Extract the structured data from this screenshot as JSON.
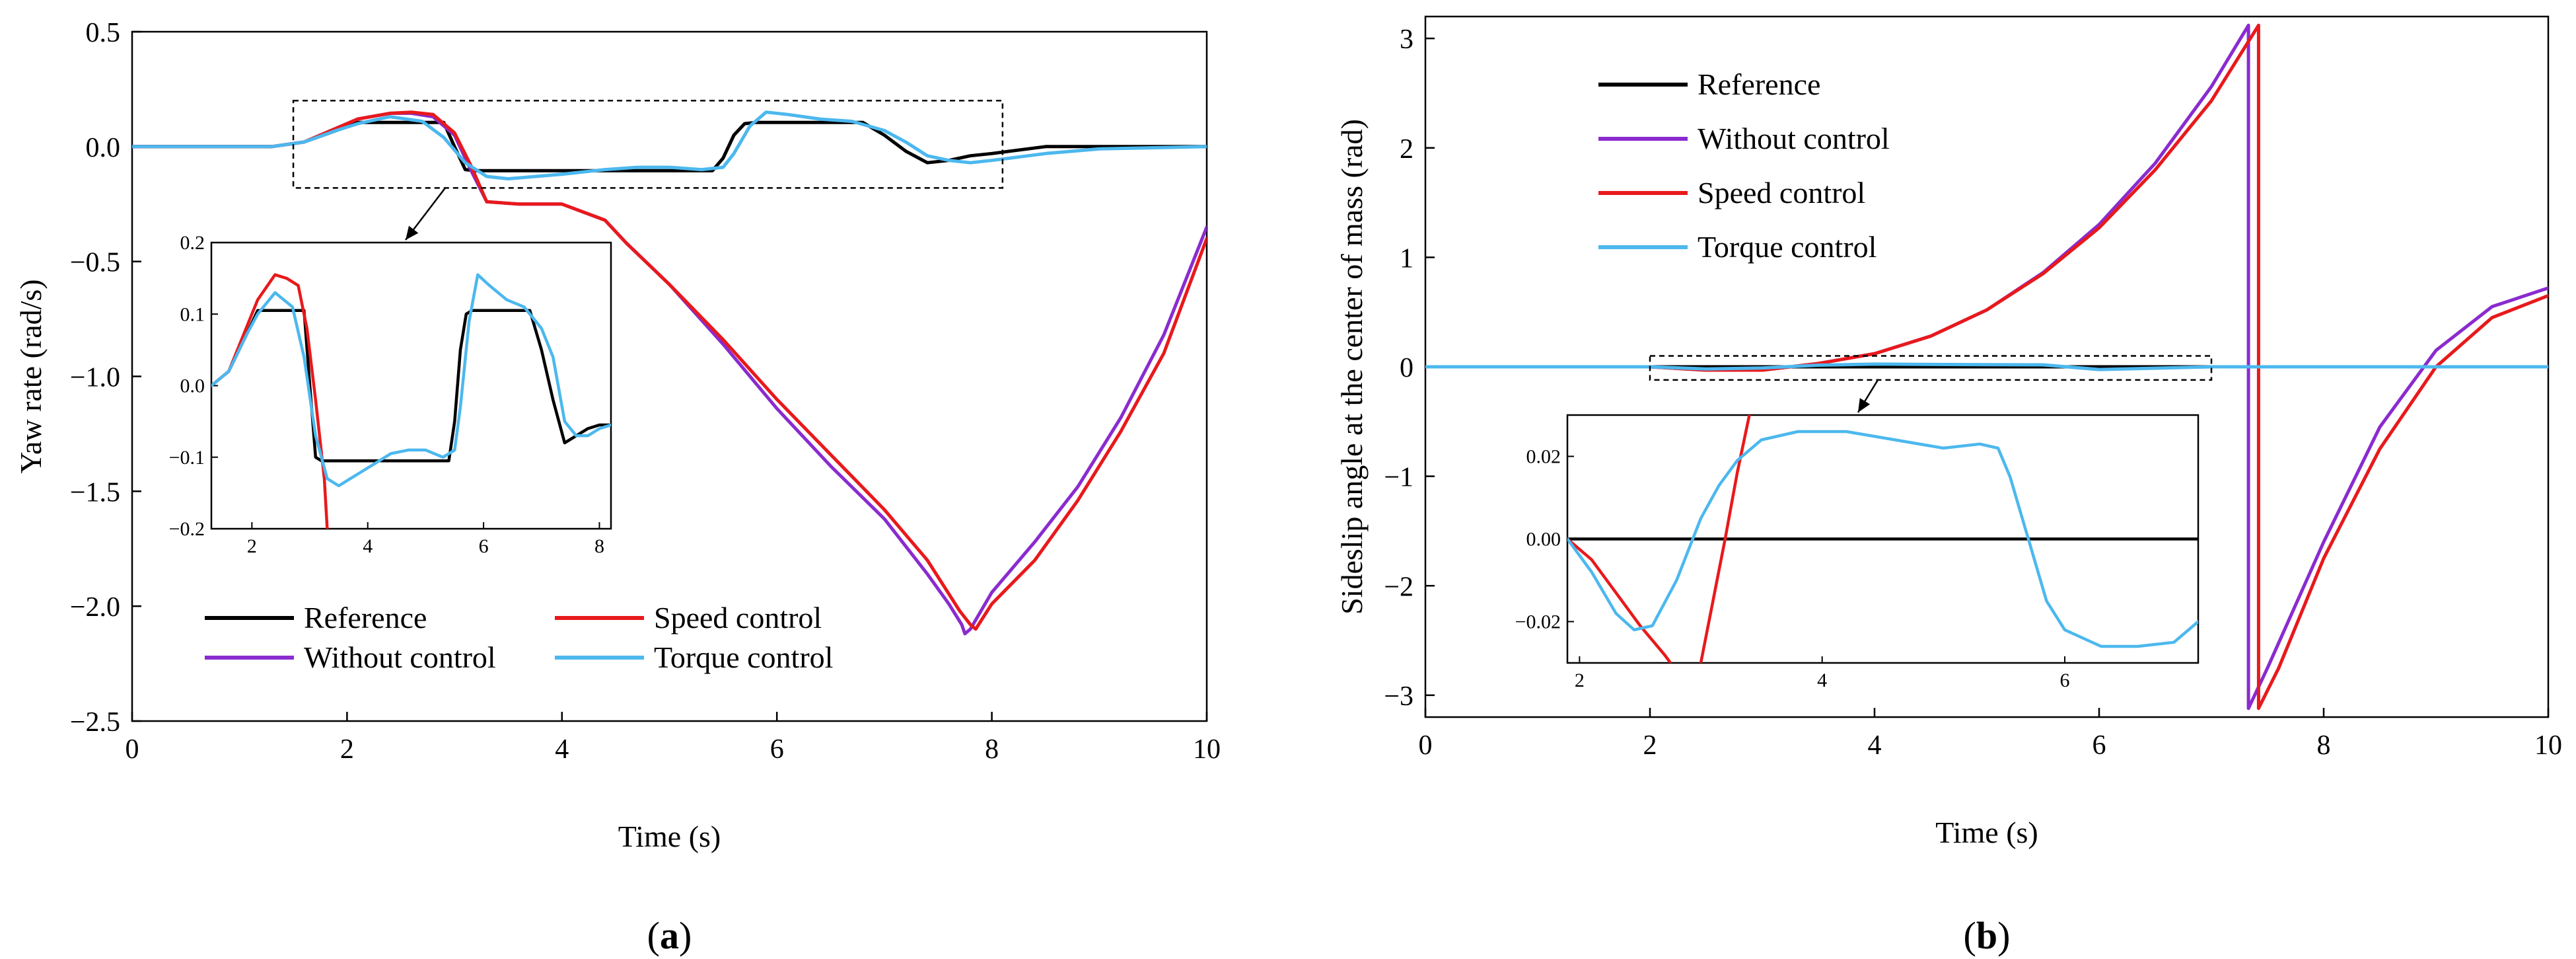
{
  "colors": {
    "reference": "#000000",
    "speed_control": "#e8191c",
    "without_control": "#8a2bcf",
    "torque_control": "#4cb8ee"
  },
  "chart_data": [
    {
      "id": "a",
      "type": "line",
      "panel_label": "a",
      "xlabel": "Time (s)",
      "ylabel": "Yaw rate (rad/s)",
      "xlim": [
        0,
        10
      ],
      "ylim": [
        -2.5,
        0.5
      ],
      "xticks": [
        "0",
        "2",
        "4",
        "6",
        "8",
        "10"
      ],
      "yticks": [
        "0.5",
        "0.0",
        "−0.5",
        "−1.0",
        "−1.5",
        "−2.0",
        "−2.5"
      ],
      "legend": {
        "placement": "lower-left",
        "columns": 2,
        "entries": [
          "Reference",
          "Speed control",
          "Without control",
          "Torque control"
        ]
      },
      "series": [
        {
          "name": "Reference",
          "color_key": "reference",
          "x": [
            0,
            1.3,
            1.6,
            1.9,
            2.1,
            2.9,
            3.0,
            3.1,
            3.2,
            4.0,
            5.4,
            5.5,
            5.6,
            5.7,
            5.8,
            6.0,
            6.8,
            7.0,
            7.2,
            7.4,
            7.6,
            7.8,
            8.0,
            8.5,
            9.0,
            10
          ],
          "y": [
            0,
            0,
            0.02,
            0.07,
            0.105,
            0.105,
            0.0,
            -0.1,
            -0.105,
            -0.105,
            -0.105,
            -0.05,
            0.05,
            0.1,
            0.105,
            0.105,
            0.105,
            0.05,
            -0.02,
            -0.07,
            -0.06,
            -0.04,
            -0.03,
            0.0,
            0.0,
            0.0
          ]
        },
        {
          "name": "Without control",
          "color_key": "without_control",
          "x": [
            0,
            1.3,
            1.6,
            1.9,
            2.1,
            2.4,
            2.6,
            2.8,
            3.0,
            3.15,
            3.3,
            3.6,
            4.0,
            4.4,
            4.6,
            5.0,
            5.5,
            6.0,
            6.5,
            7.0,
            7.4,
            7.6,
            7.72,
            7.75,
            7.8,
            8.0,
            8.4,
            8.8,
            9.2,
            9.6,
            10
          ],
          "y": [
            0,
            0,
            0.02,
            0.08,
            0.12,
            0.145,
            0.145,
            0.13,
            0.05,
            -0.1,
            -0.24,
            -0.25,
            -0.25,
            -0.32,
            -0.42,
            -0.6,
            -0.86,
            -1.14,
            -1.39,
            -1.62,
            -1.86,
            -1.99,
            -2.08,
            -2.12,
            -2.1,
            -1.94,
            -1.72,
            -1.48,
            -1.18,
            -0.82,
            -0.35
          ]
        },
        {
          "name": "Speed control",
          "color_key": "speed_control",
          "x": [
            0,
            1.3,
            1.6,
            1.9,
            2.1,
            2.4,
            2.6,
            2.8,
            3.0,
            3.15,
            3.3,
            3.6,
            4.0,
            4.4,
            4.6,
            5.0,
            5.5,
            6.0,
            6.5,
            7.0,
            7.4,
            7.7,
            7.8,
            7.85,
            8.0,
            8.4,
            8.8,
            9.2,
            9.6,
            10
          ],
          "y": [
            0,
            0,
            0.02,
            0.08,
            0.12,
            0.145,
            0.15,
            0.14,
            0.06,
            -0.08,
            -0.24,
            -0.25,
            -0.25,
            -0.32,
            -0.42,
            -0.6,
            -0.84,
            -1.1,
            -1.34,
            -1.58,
            -1.8,
            -2.02,
            -2.08,
            -2.1,
            -1.99,
            -1.8,
            -1.54,
            -1.24,
            -0.9,
            -0.4
          ]
        },
        {
          "name": "Torque control",
          "color_key": "torque_control",
          "x": [
            0,
            1.3,
            1.6,
            1.9,
            2.1,
            2.4,
            2.7,
            2.9,
            3.1,
            3.3,
            3.5,
            4.0,
            4.4,
            4.7,
            5.0,
            5.3,
            5.5,
            5.6,
            5.75,
            5.9,
            6.1,
            6.4,
            6.7,
            7.0,
            7.2,
            7.4,
            7.6,
            7.8,
            8.0,
            8.5,
            9.0,
            10
          ],
          "y": [
            0,
            0,
            0.02,
            0.07,
            0.1,
            0.13,
            0.11,
            0.04,
            -0.07,
            -0.13,
            -0.14,
            -0.12,
            -0.1,
            -0.09,
            -0.09,
            -0.1,
            -0.09,
            -0.03,
            0.09,
            0.15,
            0.14,
            0.12,
            0.11,
            0.07,
            0.02,
            -0.04,
            -0.06,
            -0.07,
            -0.06,
            -0.03,
            -0.01,
            0.0
          ]
        }
      ],
      "zoom_box": {
        "xlim": [
          1.5,
          8.1
        ],
        "ylim": [
          -0.18,
          0.2
        ]
      },
      "inset": {
        "xlim": [
          1.3,
          8.2
        ],
        "ylim": [
          -0.2,
          0.2
        ],
        "xticks": [
          "2",
          "4",
          "6",
          "8"
        ],
        "yticks": [
          "0.2",
          "0.1",
          "0.0",
          "−0.1",
          "−0.2"
        ],
        "series": [
          {
            "name": "Reference",
            "color_key": "reference",
            "x": [
              1.3,
              1.6,
              1.9,
              2.1,
              2.9,
              3.0,
              3.1,
              3.2,
              5.4,
              5.5,
              5.6,
              5.7,
              5.8,
              6.8,
              7.0,
              7.2,
              7.4,
              7.6,
              7.8,
              8.0,
              8.2
            ],
            "y": [
              0,
              0.02,
              0.07,
              0.105,
              0.105,
              0.0,
              -0.1,
              -0.105,
              -0.105,
              -0.05,
              0.05,
              0.1,
              0.105,
              0.105,
              0.05,
              -0.02,
              -0.08,
              -0.07,
              -0.06,
              -0.055,
              -0.055
            ]
          },
          {
            "name": "Speed control",
            "color_key": "speed_control",
            "x": [
              1.3,
              1.6,
              1.9,
              2.1,
              2.4,
              2.6,
              2.8,
              2.95,
              3.1,
              3.25,
              3.3
            ],
            "y": [
              0,
              0.02,
              0.08,
              0.12,
              0.155,
              0.15,
              0.14,
              0.08,
              -0.02,
              -0.13,
              -0.2
            ]
          },
          {
            "name": "Torque control",
            "color_key": "torque_control",
            "x": [
              1.3,
              1.6,
              1.9,
              2.1,
              2.4,
              2.7,
              2.9,
              3.1,
              3.3,
              3.5,
              3.7,
              4.0,
              4.4,
              4.7,
              5.0,
              5.3,
              5.5,
              5.6,
              5.75,
              5.9,
              6.1,
              6.4,
              6.7,
              7.0,
              7.2,
              7.4,
              7.6,
              7.8,
              8.0,
              8.2
            ],
            "y": [
              0,
              0.02,
              0.07,
              0.1,
              0.13,
              0.11,
              0.04,
              -0.07,
              -0.13,
              -0.14,
              -0.13,
              -0.115,
              -0.095,
              -0.09,
              -0.09,
              -0.1,
              -0.09,
              -0.03,
              0.09,
              0.155,
              0.14,
              0.12,
              0.11,
              0.08,
              0.04,
              -0.05,
              -0.07,
              -0.07,
              -0.06,
              -0.055
            ]
          }
        ]
      }
    },
    {
      "id": "b",
      "type": "line",
      "panel_label": "b",
      "xlabel": "Time (s)",
      "ylabel": "Sideslip angle at the center of mass (rad)",
      "xlim": [
        0,
        10
      ],
      "ylim": [
        -3.2,
        3.2
      ],
      "xticks": [
        "0",
        "2",
        "4",
        "6",
        "8",
        "10"
      ],
      "yticks": [
        "3",
        "2",
        "1",
        "0",
        "−1",
        "−2",
        "−3"
      ],
      "legend": {
        "placement": "top-left",
        "columns": 1,
        "entries": [
          "Reference",
          "Without control",
          "Speed control",
          "Torque control"
        ]
      },
      "series": [
        {
          "name": "Reference",
          "color_key": "reference",
          "x": [
            0,
            10
          ],
          "y": [
            0,
            0
          ]
        },
        {
          "name": "Without control",
          "color_key": "without_control",
          "x": [
            0,
            2.0,
            2.5,
            3.0,
            3.5,
            4.0,
            4.5,
            5.0,
            5.5,
            6.0,
            6.5,
            7.0,
            7.33,
            7.33,
            7.5,
            8.0,
            8.5,
            9.0,
            9.5,
            10
          ],
          "y": [
            0,
            0,
            -0.03,
            -0.03,
            0.03,
            0.12,
            0.28,
            0.52,
            0.86,
            1.3,
            1.86,
            2.56,
            3.12,
            -3.12,
            -2.75,
            -1.6,
            -0.55,
            0.15,
            0.55,
            0.72
          ]
        },
        {
          "name": "Speed control",
          "color_key": "speed_control",
          "x": [
            0,
            2.0,
            2.5,
            3.0,
            3.5,
            4.0,
            4.5,
            5.0,
            5.5,
            6.0,
            6.5,
            7.0,
            7.42,
            7.42,
            7.6,
            8.0,
            8.5,
            9.0,
            9.5,
            10
          ],
          "y": [
            0,
            0,
            -0.03,
            -0.03,
            0.03,
            0.12,
            0.28,
            0.52,
            0.85,
            1.27,
            1.8,
            2.43,
            3.12,
            -3.12,
            -2.75,
            -1.75,
            -0.75,
            0.0,
            0.45,
            0.65
          ]
        },
        {
          "name": "Torque control",
          "color_key": "torque_control",
          "x": [
            0,
            2.0,
            2.5,
            3.0,
            3.5,
            4.0,
            4.5,
            5.0,
            5.5,
            6.0,
            7.0,
            10
          ],
          "y": [
            0,
            0,
            -0.02,
            -0.01,
            0.015,
            0.025,
            0.022,
            0.02,
            0.018,
            -0.025,
            0.0,
            0.0
          ]
        }
      ],
      "zoom_box": {
        "xlim": [
          2.0,
          7.0
        ],
        "ylim": [
          -0.12,
          0.1
        ]
      },
      "inset": {
        "xlim": [
          1.9,
          7.1
        ],
        "ylim": [
          -0.03,
          0.03
        ],
        "xticks": [
          "2",
          "4",
          "6"
        ],
        "yticks": [
          "0.02",
          "0.00",
          "−0.02"
        ],
        "series": [
          {
            "name": "Reference",
            "color_key": "reference",
            "x": [
              1.9,
              7.1
            ],
            "y": [
              0.0,
              0.0
            ]
          },
          {
            "name": "Speed control",
            "color_key": "speed_control",
            "x": [
              1.9,
              2.1,
              2.3,
              2.5,
              2.7,
              2.75
            ],
            "y": [
              0.0,
              -0.005,
              -0.013,
              -0.021,
              -0.028,
              -0.03
            ]
          },
          {
            "name": "Speed control rise",
            "color_key": "speed_control",
            "x": [
              3.0,
              3.1,
              3.2,
              3.3,
              3.4
            ],
            "y": [
              -0.03,
              -0.015,
              0.0,
              0.016,
              0.03
            ]
          },
          {
            "name": "Torque control",
            "color_key": "torque_control",
            "x": [
              1.9,
              2.1,
              2.3,
              2.45,
              2.6,
              2.8,
              3.0,
              3.15,
              3.3,
              3.5,
              3.8,
              4.2,
              4.6,
              5.0,
              5.3,
              5.45,
              5.55,
              5.7,
              5.85,
              6.0,
              6.3,
              6.6,
              6.9,
              7.1
            ],
            "y": [
              0.0,
              -0.008,
              -0.018,
              -0.022,
              -0.021,
              -0.01,
              0.005,
              0.013,
              0.019,
              0.024,
              0.026,
              0.026,
              0.024,
              0.022,
              0.023,
              0.022,
              0.015,
              0.0,
              -0.015,
              -0.022,
              -0.026,
              -0.026,
              -0.025,
              -0.02
            ]
          }
        ]
      }
    }
  ]
}
